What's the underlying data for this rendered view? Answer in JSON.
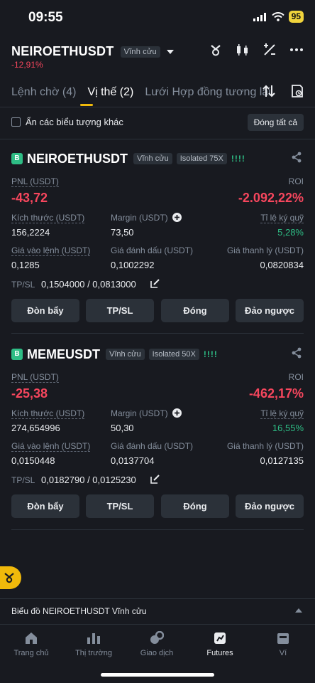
{
  "status": {
    "time": "09:55",
    "battery": "95"
  },
  "header": {
    "symbol": "NEIROETHUSDT",
    "tag": "Vĩnh cửu",
    "change": "-12,91%"
  },
  "tabs": [
    {
      "label": "Lệnh chờ (4)",
      "active": false
    },
    {
      "label": "Vị thế (2)",
      "active": true
    },
    {
      "label": "Lưới Hợp đồng tương lai",
      "active": false
    }
  ],
  "toolbar": {
    "hide_label": "Ẩn các biểu tượng khác",
    "close_all": "Đóng tất cả"
  },
  "labels": {
    "pnl": "PNL (USDT)",
    "roi": "ROI",
    "size": "Kích thước (USDT)",
    "margin": "Margin (USDT)",
    "margin_ratio": "Tỉ lệ ký quỹ",
    "entry": "Giá vào lệnh (USDT)",
    "mark": "Giá đánh dấu (USDT)",
    "liq": "Giá thanh lý (USDT)",
    "tpsl": "TP/SL"
  },
  "buttons": {
    "leverage": "Đòn bẩy",
    "tpsl": "TP/SL",
    "close": "Đóng",
    "reverse": "Đảo ngược"
  },
  "positions": [
    {
      "badge": "B",
      "symbol": "NEIROETHUSDT",
      "tag": "Vĩnh cửu",
      "mode": "Isolated 75X",
      "strength": "!!!!",
      "pnl": "-43,72",
      "roi": "-2.092,22%",
      "size": "156,2224",
      "margin": "73,50",
      "margin_ratio": "5,28%",
      "entry": "0,1285",
      "mark": "0,1002292",
      "liq": "0,0820834",
      "tpsl": "0,1504000 / 0,0813000"
    },
    {
      "badge": "B",
      "symbol": "MEMEUSDT",
      "tag": "Vĩnh cửu",
      "mode": "Isolated 50X",
      "strength": "!!!!",
      "pnl": "-25,38",
      "roi": "-462,17%",
      "size": "274,654996",
      "margin": "50,30",
      "margin_ratio": "16,55%",
      "entry": "0,0150448",
      "mark": "0,0137704",
      "liq": "0,0127135",
      "tpsl": "0,0182790 / 0,0125230"
    }
  ],
  "chart_bar": {
    "label": "Biểu đồ NEIROETHUSDT Vĩnh cửu"
  },
  "nav": [
    {
      "label": "Trang chủ",
      "icon": "home-icon"
    },
    {
      "label": "Thị trường",
      "icon": "markets-icon"
    },
    {
      "label": "Giao dịch",
      "icon": "trade-icon"
    },
    {
      "label": "Futures",
      "icon": "futures-icon",
      "active": true
    },
    {
      "label": "Ví",
      "icon": "wallet-icon"
    }
  ]
}
